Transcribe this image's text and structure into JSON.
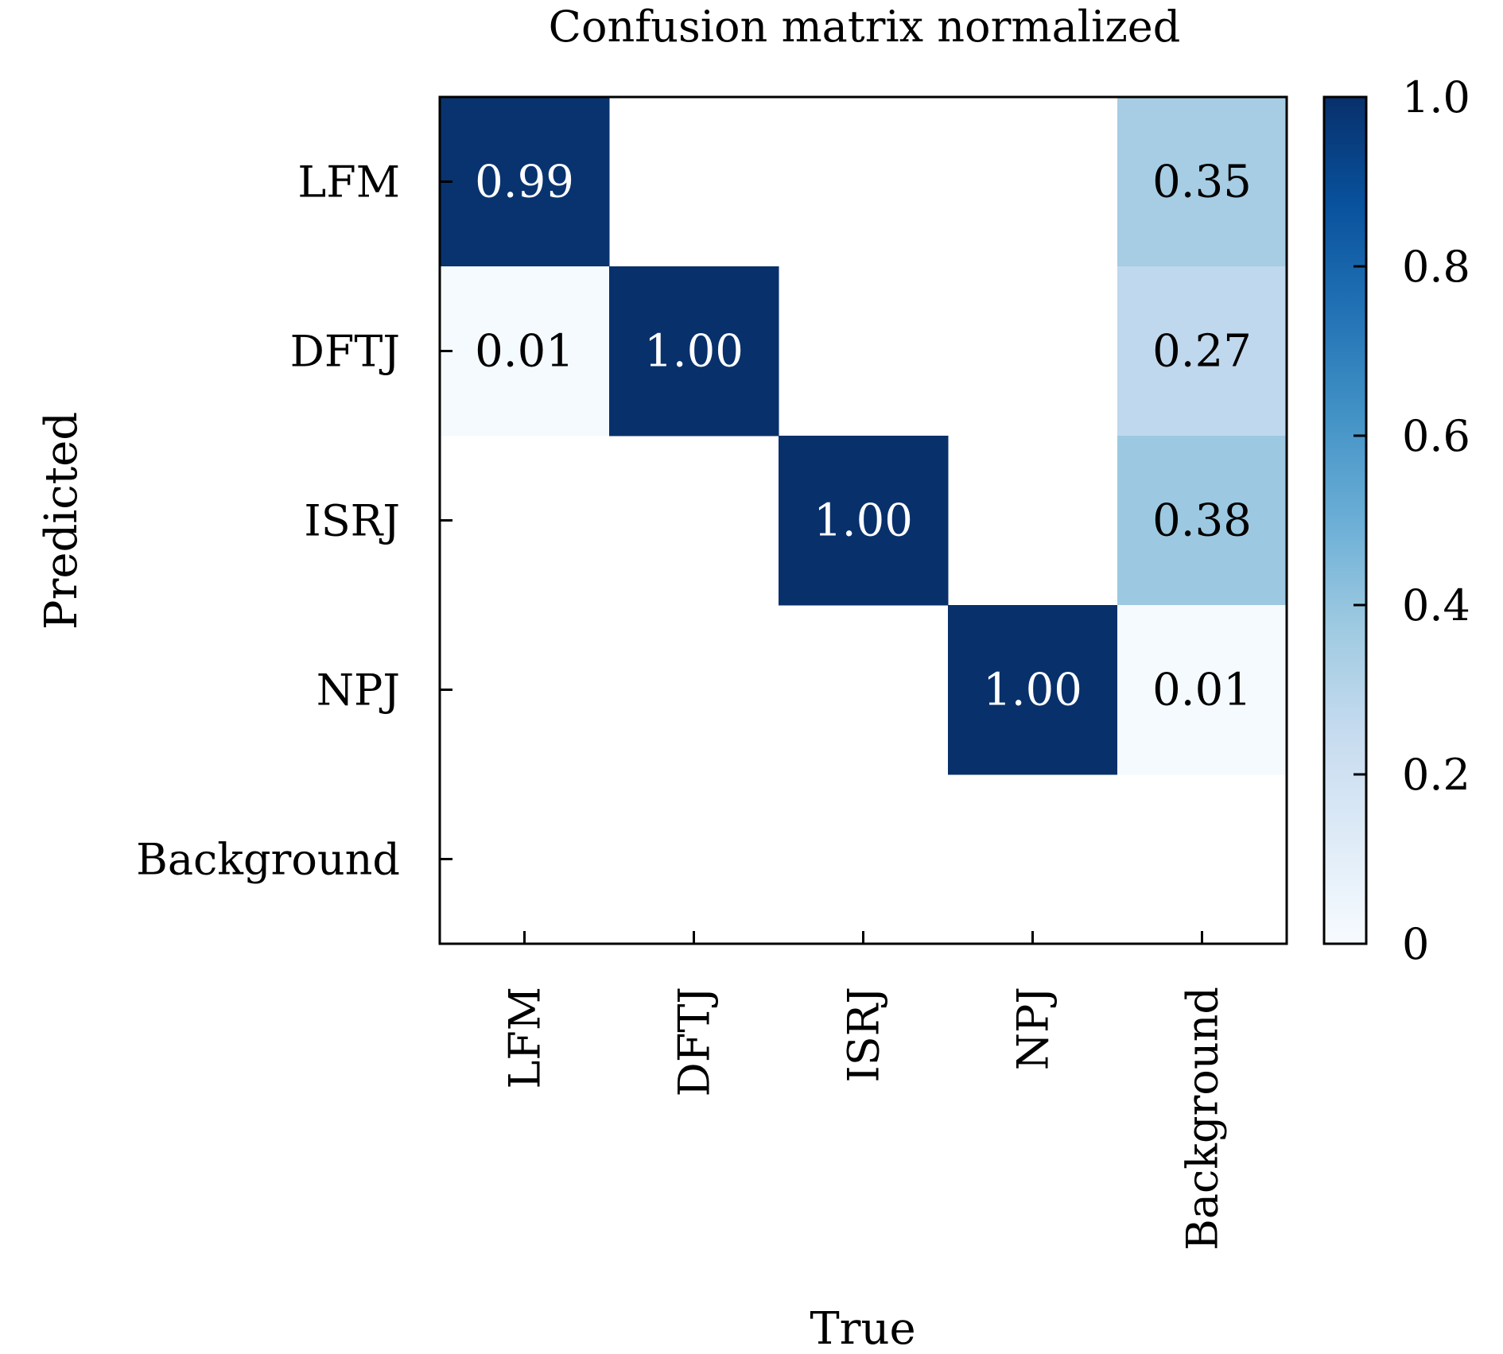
{
  "chart_data": {
    "type": "heatmap",
    "title": "Confusion matrix normalized",
    "xlabel": "True",
    "ylabel": "Predicted",
    "x_categories": [
      "LFM",
      "DFTJ",
      "ISRJ",
      "NPJ",
      "Background"
    ],
    "y_categories": [
      "LFM",
      "DFTJ",
      "ISRJ",
      "NPJ",
      "Background"
    ],
    "cells": [
      {
        "row": 0,
        "col": 0,
        "value": 0.99,
        "label": "0.99"
      },
      {
        "row": 0,
        "col": 4,
        "value": 0.35,
        "label": "0.35"
      },
      {
        "row": 1,
        "col": 0,
        "value": 0.01,
        "label": "0.01"
      },
      {
        "row": 1,
        "col": 1,
        "value": 1.0,
        "label": "1.00"
      },
      {
        "row": 1,
        "col": 4,
        "value": 0.27,
        "label": "0.27"
      },
      {
        "row": 2,
        "col": 2,
        "value": 1.0,
        "label": "1.00"
      },
      {
        "row": 2,
        "col": 4,
        "value": 0.38,
        "label": "0.38"
      },
      {
        "row": 3,
        "col": 3,
        "value": 1.0,
        "label": "1.00"
      },
      {
        "row": 3,
        "col": 4,
        "value": 0.01,
        "label": "0.01"
      }
    ],
    "colormap": "Blues",
    "colorbar": {
      "range": [
        0,
        1
      ],
      "ticks": [
        0,
        0.2,
        0.4,
        0.6,
        0.8,
        1.0
      ],
      "tick_labels": [
        "0",
        "0.2",
        "0.4",
        "0.6",
        "0.8",
        "1.0"
      ]
    },
    "colors": {
      "low": "#f7fbff",
      "high": "#08306b",
      "text_light": "#ffffff",
      "text_dark": "#000000",
      "axis": "#000000"
    }
  }
}
